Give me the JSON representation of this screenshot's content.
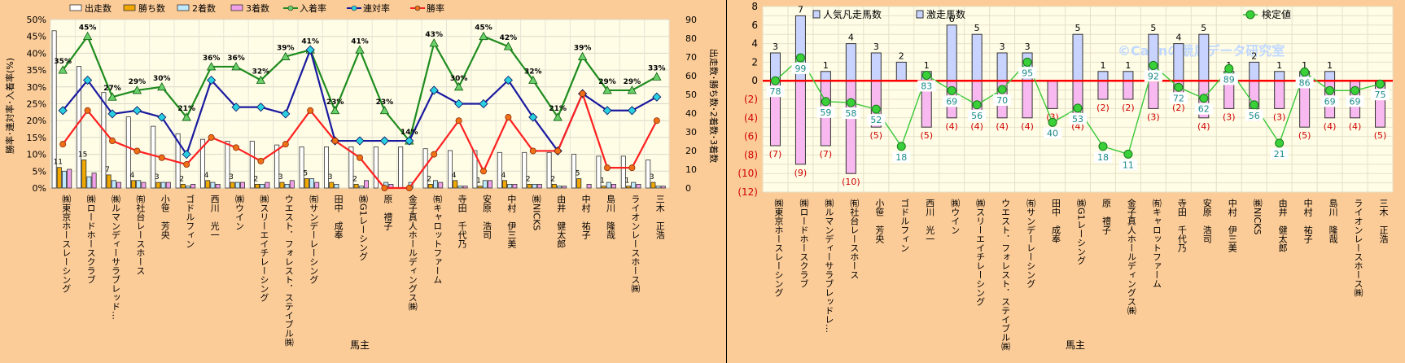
{
  "chart_data": [
    {
      "type": "bar+line",
      "xlabel": "馬主",
      "ylabel_left": "勝率･連対率･入着率(%)",
      "ylabel_right": "出走数･勝ち数･2着数･3着数",
      "ylim_left": [
        0,
        50
      ],
      "ylim_right": [
        0,
        90
      ],
      "left_ticks": [
        "0%",
        "5%",
        "10%",
        "15%",
        "20%",
        "25%",
        "30%",
        "35%",
        "40%",
        "45%",
        "50%"
      ],
      "right_ticks": [
        "0",
        "10",
        "20",
        "30",
        "40",
        "50",
        "60",
        "70",
        "80",
        "90"
      ],
      "categories": [
        "㈱東京ホースレーシング",
        "㈱ロードホースクラブ",
        "㈱ルマンディーサラブレッド…",
        "㈲社台レースホース",
        "小笹　芳央",
        "ゴドルフィン",
        "西川　光一",
        "㈱ウイン",
        "㈱スリーエイチレーシング",
        "ウエスト．フォレスト．ステイブル㈱",
        "㈲サンデーレーシング",
        "田中　成奉",
        "㈱G1レーシング",
        "原　禮子",
        "金子真人ホールディングス㈱",
        "㈲キャロットファーム",
        "寺田　千代乃",
        "安原　浩司",
        "中村　伊三美",
        "㈱NICKS",
        "由井　健太郎",
        "中村　祐子",
        "島川　隆哉",
        "ライオンレースホース㈱",
        "三木　正浩"
      ],
      "bar_series": [
        {
          "name": "出走数",
          "values": [
            84,
            65,
            51,
            38,
            33,
            29,
            26,
            25,
            25,
            23,
            22,
            22,
            22,
            22,
            22,
            21,
            20,
            20,
            19,
            19,
            19,
            18,
            17,
            17,
            15
          ]
        },
        {
          "name": "勝ち数",
          "values": [
            11,
            15,
            7,
            4,
            3,
            2,
            4,
            3,
            2,
            3,
            5,
            3,
            2,
            0,
            0,
            2,
            4,
            1,
            4,
            2,
            2,
            5,
            1,
            1,
            3
          ]
        },
        {
          "name": "2着数",
          "values": [
            9,
            6,
            4,
            4,
            3,
            1,
            3,
            3,
            2,
            2,
            5,
            2,
            1,
            3,
            3,
            4,
            1,
            4,
            2,
            2,
            1,
            0,
            3,
            3,
            1
          ]
        },
        {
          "name": "3着数",
          "values": [
            10,
            8,
            3,
            3,
            3,
            2,
            2,
            3,
            3,
            4,
            3,
            0,
            4,
            2,
            0,
            3,
            1,
            4,
            2,
            2,
            1,
            2,
            2,
            2,
            1
          ]
        }
      ],
      "bar_labels": [
        "11",
        "15",
        "7",
        "4",
        "3",
        "2",
        "4",
        "3",
        "2",
        "3",
        "5",
        "3",
        "2",
        "",
        "",
        "2",
        "4",
        "1",
        "4",
        "2",
        "2",
        "5",
        "1",
        "1",
        "3"
      ],
      "line_series": [
        {
          "name": "入着率",
          "values": [
            35,
            45,
            27,
            29,
            30,
            21,
            36,
            36,
            32,
            39,
            41,
            23,
            41,
            23,
            14,
            43,
            30,
            45,
            42,
            32,
            21,
            39,
            29,
            29,
            33
          ]
        },
        {
          "name": "連対率",
          "values": [
            23,
            32,
            22,
            23,
            21,
            10,
            32,
            24,
            24,
            22,
            41,
            14,
            14,
            14,
            14,
            29,
            25,
            25,
            32,
            21,
            11,
            28,
            23,
            23,
            27
          ]
        },
        {
          "name": "勝率",
          "values": [
            13,
            23,
            14,
            11,
            9,
            7,
            15,
            12,
            8,
            13,
            23,
            14,
            9,
            0,
            0,
            10,
            20,
            5,
            21,
            11,
            11,
            28,
            6,
            6,
            20
          ]
        }
      ],
      "line_labels": [
        "35%",
        "45%",
        "27%",
        "29%",
        "30%",
        "21%",
        "36%",
        "36%",
        "32%",
        "39%",
        "41%",
        "23%",
        "41%",
        "23%",
        "14%",
        "43%",
        "30%",
        "45%",
        "42%",
        "32%",
        "21%",
        "39%",
        "29%",
        "29%",
        "33%"
      ],
      "legend": [
        "出走数",
        "勝ち数",
        "2着数",
        "3着数",
        "入着率",
        "連対率",
        "勝率"
      ],
      "colors": {
        "starts": "#ffffff",
        "wins": "#f0a800",
        "second": "#bfe9ff",
        "third": "#f0a0e8",
        "place": "#1e8c1e",
        "quinella": "#1a1aa0",
        "win": "#ff2020",
        "line_marker_place": "#6ad06a",
        "line_marker_quinella": "#28d0e0",
        "line_marker_win": "#f07018"
      }
    },
    {
      "type": "bar+line",
      "xlabel": "馬主",
      "ylim": [
        -12,
        8
      ],
      "y_ticks": [
        "8",
        "6",
        "4",
        "2",
        "0",
        "(2)",
        "(4)",
        "(6)",
        "(8)",
        "(10)",
        "(12)"
      ],
      "categories": [
        "㈱東京ホースレーシング",
        "㈱ロードホースクラブ",
        "㈱ルマンディーサラブレッドレ…",
        "㈲社台レースホース",
        "小笹　芳央",
        "ゴドルフィン",
        "西川　光一",
        "㈱ウイン",
        "㈱スリーエイチレーシング",
        "ウエスト．フォレスト．ステイブル㈱",
        "㈲サンデーレーシング",
        "田中　成奉",
        "㈱G1レーシング",
        "原　禮子",
        "金子真人ホールディングス㈱",
        "㈲キャロットファーム",
        "寺田　千代乃",
        "安原　浩司",
        "中村　伊三美",
        "㈱NICKS",
        "由井　健太郎",
        "中村　祐子",
        "島川　隆哉",
        "ライオンレースホース㈱",
        "三木　正浩"
      ],
      "bar_series": [
        {
          "name": "人気凡走馬数",
          "values": [
            -7,
            -9,
            -7,
            -10,
            -5,
            0,
            -5,
            -4,
            -4,
            -4,
            -4,
            -3,
            -4,
            -2,
            -2,
            -3,
            -2,
            -4,
            -3,
            -3,
            -3,
            -5,
            -4,
            -4,
            -5
          ]
        },
        {
          "name": "激走馬数",
          "values": [
            3,
            7,
            1,
            4,
            3,
            2,
            1,
            6,
            5,
            3,
            3,
            0,
            5,
            1,
            1,
            5,
            4,
            5,
            1,
            2,
            1,
            1,
            1,
            0,
            0
          ]
        }
      ],
      "top_labels": [
        "3",
        "7",
        "1",
        "4",
        "3",
        "2",
        "1",
        "6",
        "5",
        "3",
        "3",
        "",
        "5",
        "1",
        "1",
        "5",
        "4",
        "5",
        "1",
        "2",
        "1",
        "1",
        "1",
        "",
        ""
      ],
      "bottom_labels": [
        "(7)",
        "(9)",
        "(7)",
        "(10)",
        "(5)",
        "",
        "(5)",
        "(4)",
        "(4)",
        "(4)",
        "(4)",
        "(3)",
        "(4)",
        "(2)",
        "(2)",
        "(3)",
        "(2)",
        "(4)",
        "(3)",
        "(3)",
        "(3)",
        "(5)",
        "(4)",
        "(4)",
        "(5)"
      ],
      "line_series": [
        {
          "name": "検定値",
          "values": [
            78,
            99,
            59,
            58,
            52,
            18,
            83,
            69,
            56,
            70,
            95,
            40,
            53,
            18,
            11,
            92,
            72,
            62,
            89,
            56,
            21,
            86,
            69,
            69,
            75
          ]
        }
      ],
      "line_axis_map": {
        "value_at_zero": 78,
        "units_per_value": 0.118
      },
      "legend": [
        "人気凡走馬数",
        "激走馬数",
        "検定値"
      ],
      "watermark": "©Cannの競馬データ研究室",
      "colors": {
        "neg_bar": "#f8b8f0",
        "pos_bar": "#c8d4ff",
        "zero_line": "#ff0000",
        "line": "#3ac83a",
        "marker": "#3ad03a",
        "value_text": "#1a8a8a"
      }
    }
  ]
}
